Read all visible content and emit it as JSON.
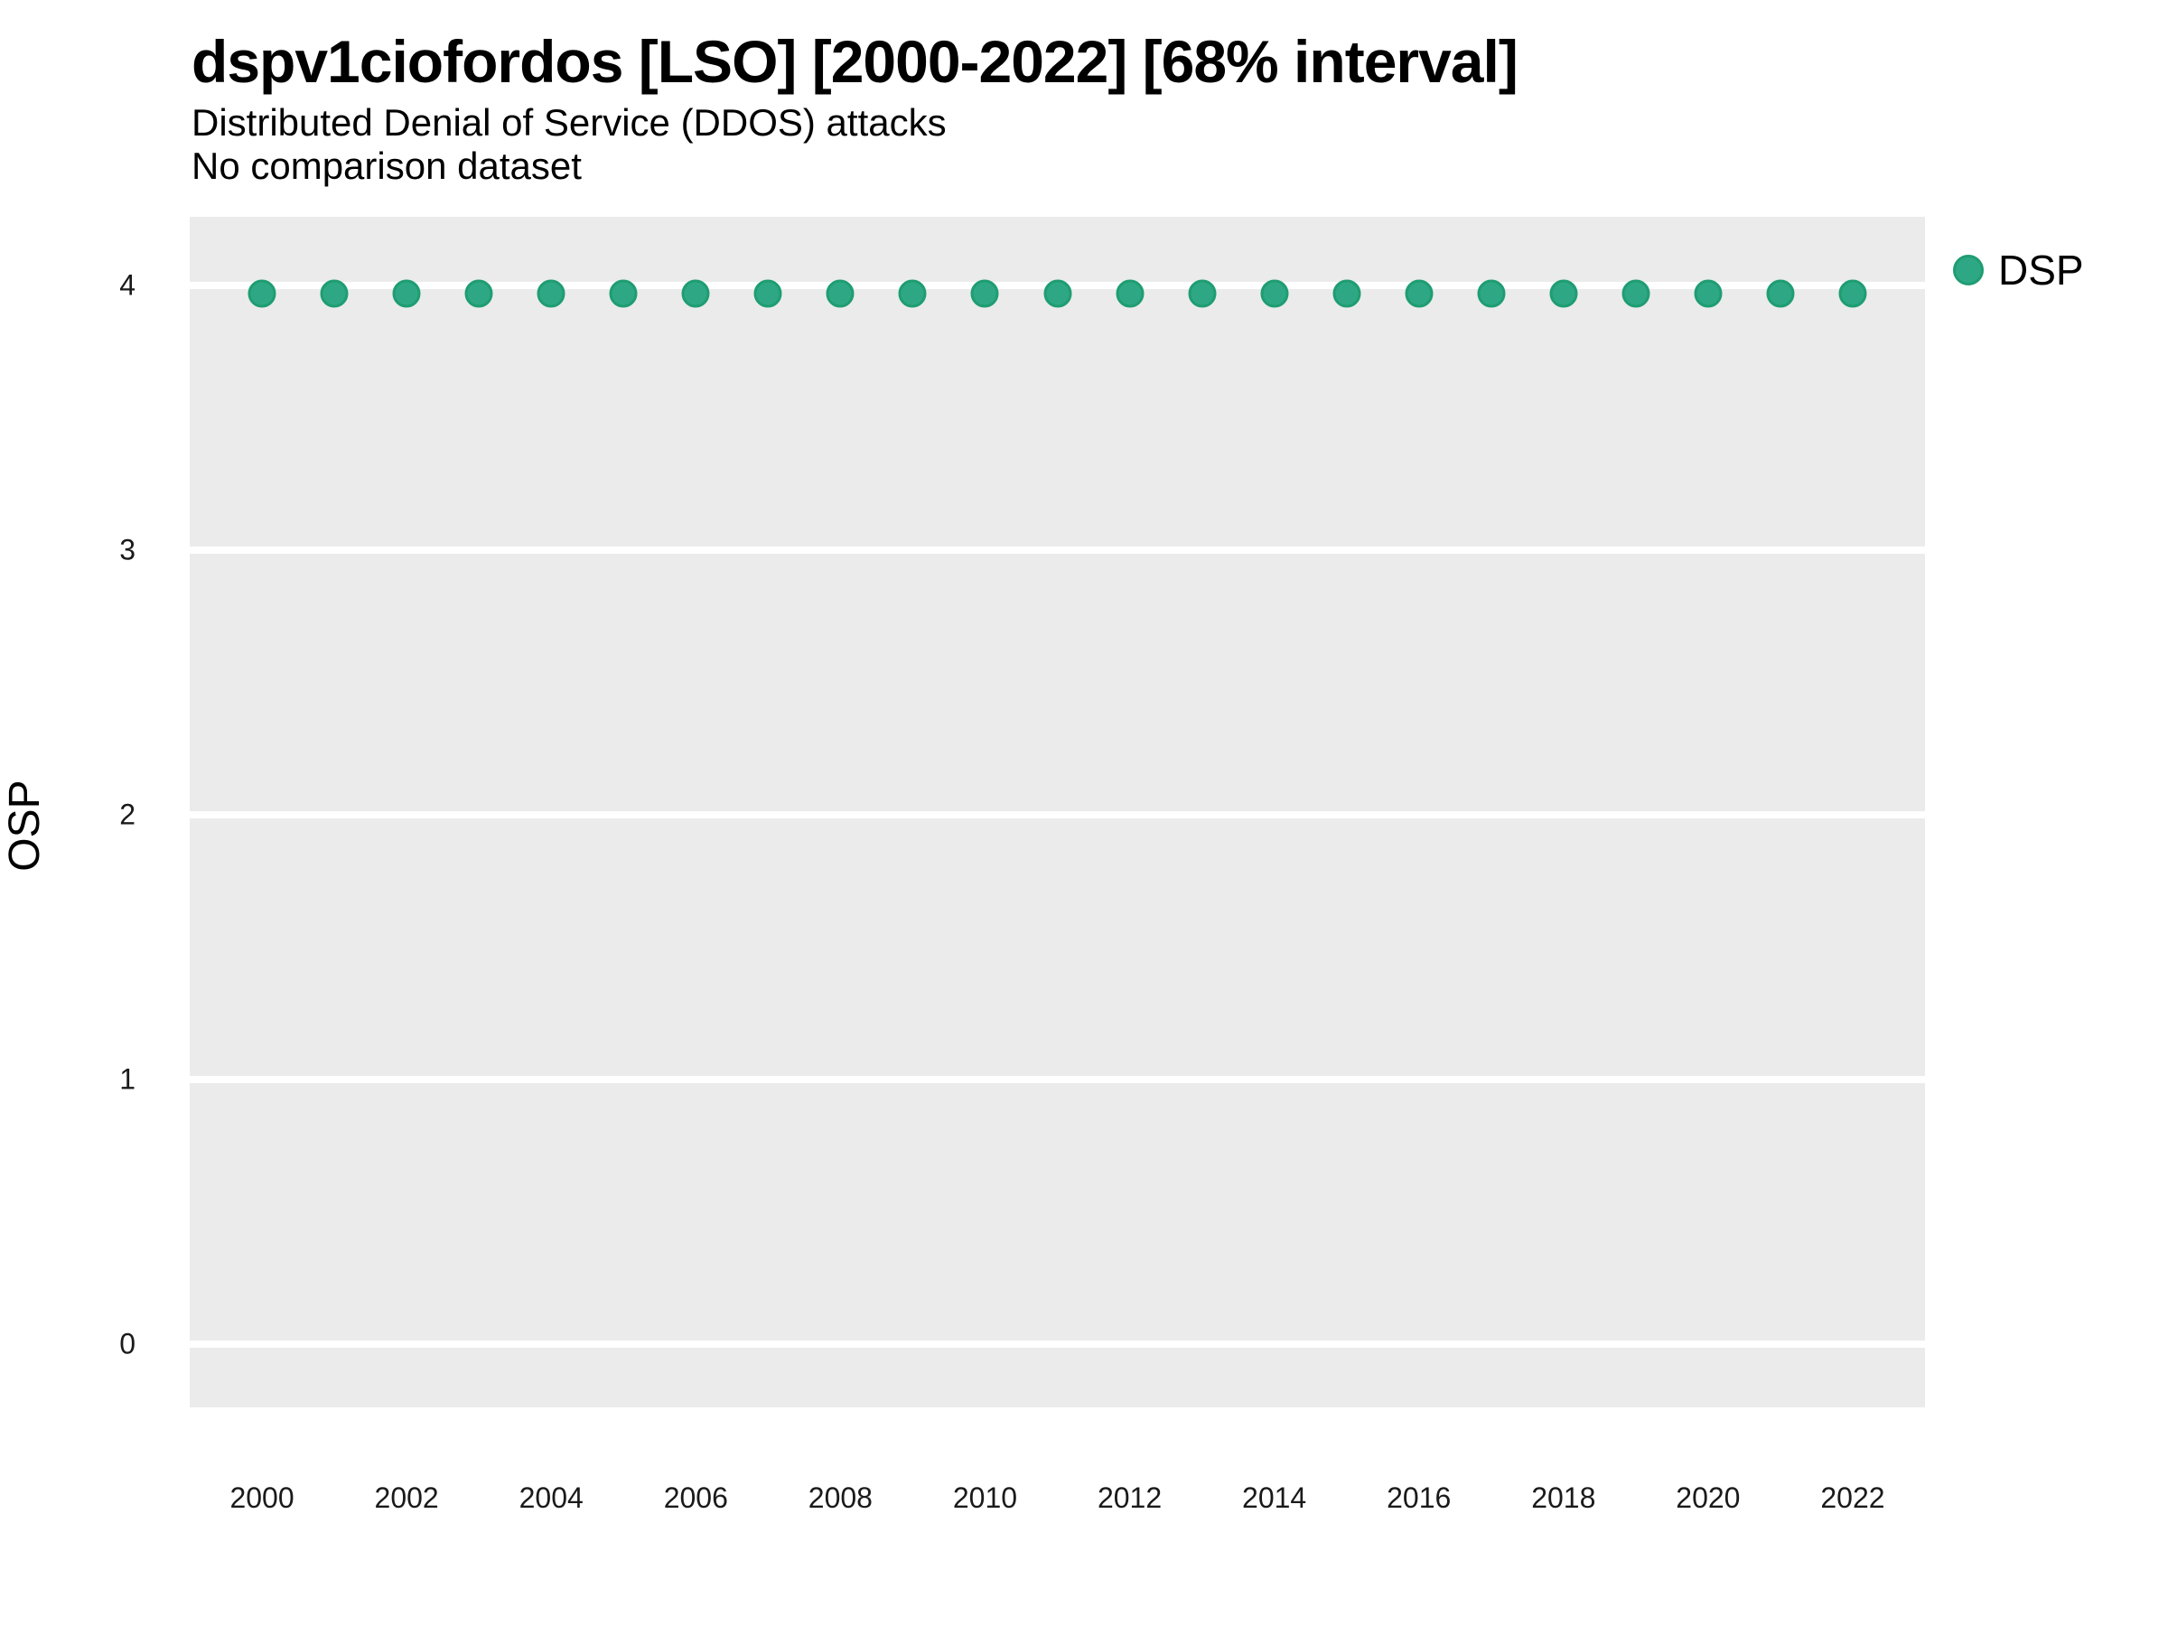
{
  "header": {
    "title": "dspv1ciofordos [LSO] [2000-2022] [68% interval]",
    "subtitle": "Distributed Denial of Service (DDOS) attacks",
    "note": "No comparison dataset"
  },
  "chart_data": {
    "type": "scatter",
    "title": "dspv1ciofordos [LSO] [2000-2022] [68% interval]",
    "subtitle": "Distributed Denial of Service (DDOS) attacks",
    "note": "No comparison dataset",
    "xlabel": "",
    "ylabel": "OSP",
    "series": [
      {
        "name": "DSP",
        "color": "#2EA884",
        "stroke": "#1F9D72",
        "x": [
          2000,
          2001,
          2002,
          2003,
          2004,
          2005,
          2006,
          2007,
          2008,
          2009,
          2010,
          2011,
          2012,
          2013,
          2014,
          2015,
          2016,
          2017,
          2018,
          2019,
          2020,
          2021,
          2022
        ],
        "y": [
          3.97,
          3.97,
          3.97,
          3.97,
          3.97,
          3.97,
          3.97,
          3.97,
          3.97,
          3.97,
          3.97,
          3.97,
          3.97,
          3.97,
          3.97,
          3.97,
          3.97,
          3.97,
          3.97,
          3.97,
          3.97,
          3.97,
          3.97
        ]
      }
    ],
    "x_ticks": [
      2000,
      2002,
      2004,
      2006,
      2008,
      2010,
      2012,
      2014,
      2016,
      2018,
      2020,
      2022
    ],
    "y_ticks": [
      0,
      1,
      2,
      3,
      4
    ],
    "xlim": [
      1999,
      2023
    ],
    "ylim": [
      -0.24,
      4.26
    ],
    "grid": "major-horizontal",
    "grid_color": "#FFFFFF",
    "panel_bg": "#EBEBEB",
    "legend_position": "right",
    "legend": [
      {
        "label": "DSP",
        "color": "#2EA884",
        "stroke": "#1F9D72"
      }
    ]
  }
}
